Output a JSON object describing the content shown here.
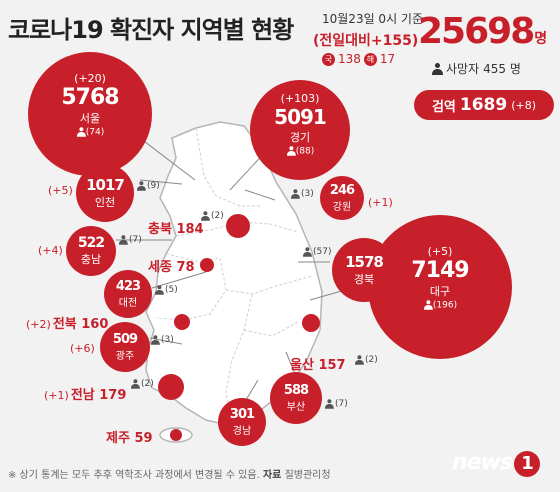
{
  "header": {
    "title": "코로나19 확진자 지역별 현황",
    "date": "10월23일 0시 기준",
    "total": "25698",
    "total_unit": "명",
    "daily_change": "(전일대비+155)",
    "domestic_badge": "국",
    "domestic": "138",
    "overseas_badge": "해",
    "overseas": "17",
    "deaths_label": "사망자",
    "deaths": "455 명",
    "quarantine_label": "검역",
    "quarantine": "1689",
    "quarantine_change": "(+8)"
  },
  "regions": {
    "seoul": {
      "inc": "(+20)",
      "count": "5768",
      "name": "서울",
      "deaths": "(74)"
    },
    "gyeonggi": {
      "inc": "(+103)",
      "count": "5091",
      "name": "경기",
      "deaths": "(88)"
    },
    "daegu": {
      "inc": "(+5)",
      "count": "7149",
      "name": "대구",
      "deaths": "(196)"
    },
    "incheon": {
      "inc": "(+5)",
      "count": "1017",
      "name": "인천",
      "deaths": "(9)"
    },
    "gangwon": {
      "inc": "(+1)",
      "count": "246",
      "name": "강원",
      "deaths": "(3)"
    },
    "chungnam": {
      "inc": "(+4)",
      "count": "522",
      "name": "충남",
      "deaths": "(7)"
    },
    "gyeongbuk": {
      "count": "1578",
      "name": "경북",
      "deaths": "(57)"
    },
    "daejeon": {
      "count": "423",
      "name": "대전",
      "deaths": "(5)"
    },
    "gwangju": {
      "inc": "(+6)",
      "count": "509",
      "name": "광주",
      "deaths": "(3)"
    },
    "gyeongnam": {
      "count": "301",
      "name": "경남"
    },
    "busan": {
      "count": "588",
      "name": "부산",
      "deaths": "(7)"
    },
    "chungbuk": {
      "label": "충북 184",
      "deaths": "(2)"
    },
    "sejong": {
      "label": "세종 78"
    },
    "jeonbuk": {
      "inc": "(+2)",
      "label": "전북 160"
    },
    "jeonnam": {
      "inc": "(+1)",
      "label": "전남 179",
      "deaths": "(2)"
    },
    "ulsan": {
      "label": "울산 157",
      "deaths": "(2)"
    },
    "jeju": {
      "label": "제주 59"
    }
  },
  "footer": {
    "note": "※ 상기 통계는 모두 추후 역학조사 과정에서 변경될 수 있음.",
    "source_label": "자료",
    "source": "질병관리청"
  },
  "logo": {
    "text": "news",
    "mark": "1"
  },
  "colors": {
    "accent": "#c8202a",
    "map_fill": "#ffffff",
    "map_stroke": "#b5b5b5"
  }
}
